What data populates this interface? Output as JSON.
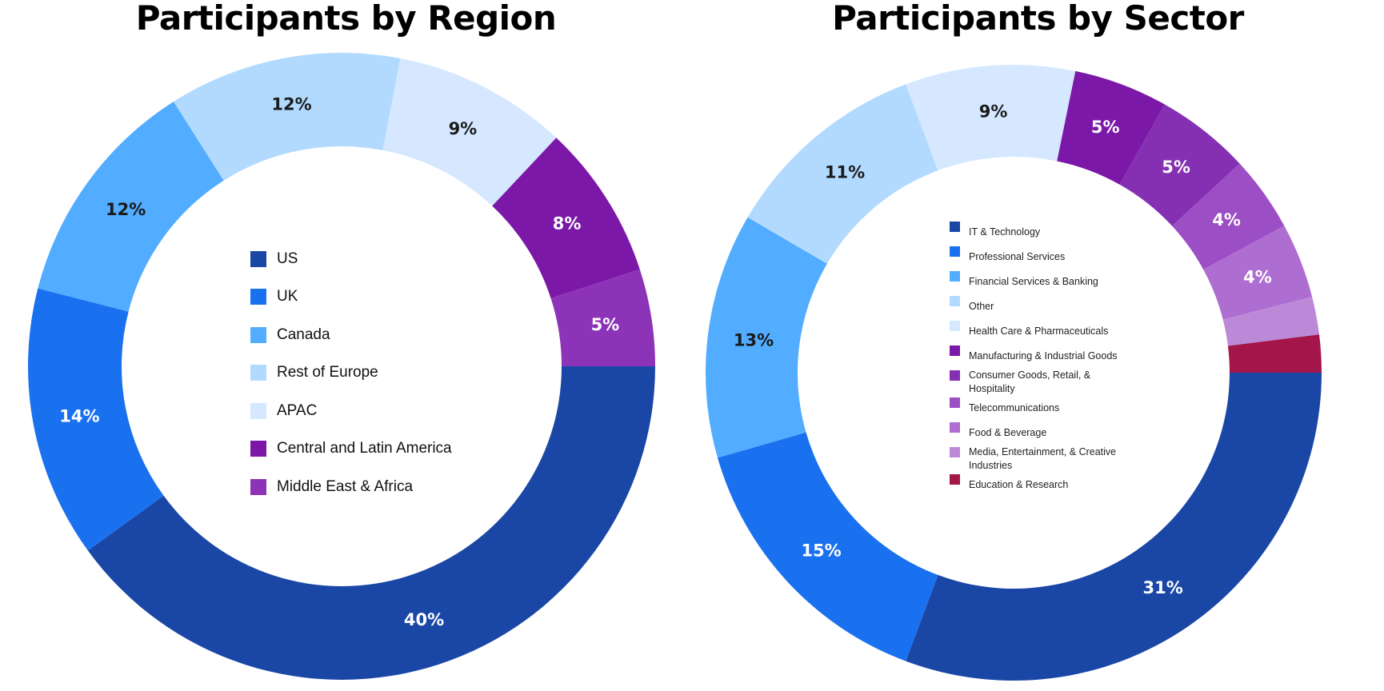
{
  "chart_data": [
    {
      "type": "pie",
      "variant": "donut",
      "title": "Participants by Region",
      "legend_position": "center",
      "slices": [
        {
          "label": "US",
          "value": 40,
          "value_label": "40%",
          "color": "#1A47A6",
          "label_color": "#ffffff"
        },
        {
          "label": "UK",
          "value": 14,
          "value_label": "14%",
          "color": "#1A71EF",
          "label_color": "#ffffff"
        },
        {
          "label": "Canada",
          "value": 12,
          "value_label": "12%",
          "color": "#52ACFF",
          "label_color": "#1a1a1a"
        },
        {
          "label": "Rest of Europe",
          "value": 12,
          "value_label": "12%",
          "color": "#B2DAFF",
          "label_color": "#1a1a1a"
        },
        {
          "label": "APAC",
          "value": 9,
          "value_label": "9%",
          "color": "#D5E8FF",
          "label_color": "#1a1a1a"
        },
        {
          "label": "Central and Latin America",
          "value": 8,
          "value_label": "8%",
          "color": "#7B18A8",
          "label_color": "#ffffff"
        },
        {
          "label": "Middle East & Africa",
          "value": 5,
          "value_label": "5%",
          "color": "#8C33B8",
          "label_color": "#ffffff"
        }
      ]
    },
    {
      "type": "pie",
      "variant": "donut",
      "title": "Participants by Sector",
      "legend_position": "center",
      "slices": [
        {
          "label": "IT & Technology",
          "value": 31,
          "value_label": "31%",
          "color": "#1A47A6",
          "label_color": "#ffffff"
        },
        {
          "label": "Professional Services",
          "value": 15,
          "value_label": "15%",
          "color": "#1A71EF",
          "label_color": "#ffffff"
        },
        {
          "label": "Financial Services & Banking",
          "value": 13,
          "value_label": "13%",
          "color": "#52ACFF",
          "label_color": "#1a1a1a"
        },
        {
          "label": "Other",
          "value": 11,
          "value_label": "11%",
          "color": "#B2DAFF",
          "label_color": "#1a1a1a"
        },
        {
          "label": "Health Care & Pharmaceuticals",
          "value": 9,
          "value_label": "9%",
          "color": "#D5E8FF",
          "label_color": "#1a1a1a"
        },
        {
          "label": "Manufacturing & Industrial Goods",
          "value": 5,
          "value_label": "5%",
          "color": "#7B18A8",
          "label_color": "#ffffff"
        },
        {
          "label": "Consumer Goods, Retail, & Hospitality",
          "value": 5,
          "value_label": "5%",
          "color": "#8530B3",
          "label_color": "#ffffff"
        },
        {
          "label": "Telecommunications",
          "value": 4,
          "value_label": "4%",
          "color": "#9C4EC4",
          "label_color": "#ffffff"
        },
        {
          "label": "Food & Beverage",
          "value": 4,
          "value_label": "4%",
          "color": "#AE6DD0",
          "label_color": "#ffffff"
        },
        {
          "label": "Media, Entertainment, & Creative Industries",
          "value": 2,
          "value_label": "",
          "color": "#BC89D8",
          "label_color": "#ffffff"
        },
        {
          "label": "Education & Research",
          "value": 2,
          "value_label": "",
          "color": "#A4154A",
          "label_color": "#ffffff"
        }
      ]
    }
  ]
}
